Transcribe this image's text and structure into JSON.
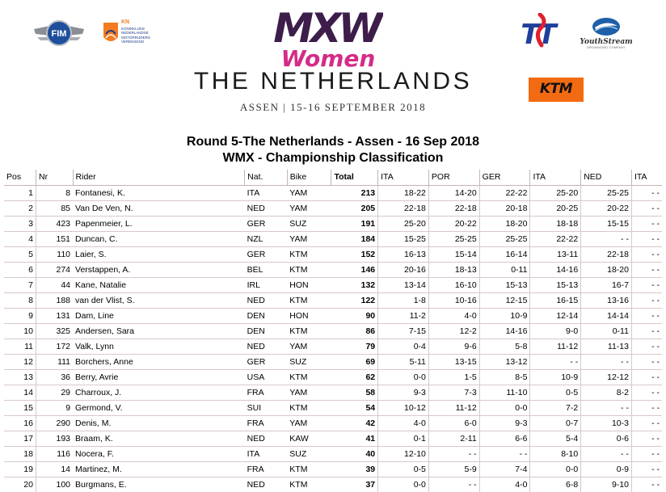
{
  "header": {
    "event_logo_top": "MXW",
    "event_logo_bottom": "Women",
    "country": "THE NETHERLANDS",
    "dates": "ASSEN | 15-16 SEPTEMBER 2018",
    "sponsor_knmv_abbr": "KN",
    "sponsor_knmv_text": "Koninklijke Nederlandse Motorrijders Vereniging",
    "sponsor_tt": "TT",
    "sponsor_youthstream": "YouthStream",
    "sponsor_youthstream_sub": "ORGANIZING COMPANY",
    "sponsor_ktm": "KTM",
    "sponsor_fim": "FIM"
  },
  "title": {
    "line1": "Round 5-The Netherlands - Assen - 16 Sep 2018",
    "line2": "WMX - Championship Classification"
  },
  "table": {
    "columns": [
      "Pos",
      "Nr",
      "Rider",
      "Nat.",
      "Bike",
      "Total",
      "ITA",
      "POR",
      "GER",
      "ITA",
      "NED",
      "ITA"
    ],
    "rows": [
      [
        "1",
        "8",
        "Fontanesi, K.",
        "ITA",
        "YAM",
        "213",
        "18-22",
        "14-20",
        "22-22",
        "25-20",
        "25-25",
        "- -"
      ],
      [
        "2",
        "85",
        "Van De Ven, N.",
        "NED",
        "YAM",
        "205",
        "22-18",
        "22-18",
        "20-18",
        "20-25",
        "20-22",
        "- -"
      ],
      [
        "3",
        "423",
        "Papenmeier, L.",
        "GER",
        "SUZ",
        "191",
        "25-20",
        "20-22",
        "18-20",
        "18-18",
        "15-15",
        "- -"
      ],
      [
        "4",
        "151",
        "Duncan, C.",
        "NZL",
        "YAM",
        "184",
        "15-25",
        "25-25",
        "25-25",
        "22-22",
        "- -",
        "- -"
      ],
      [
        "5",
        "110",
        "Laier, S.",
        "GER",
        "KTM",
        "152",
        "16-13",
        "15-14",
        "16-14",
        "13-11",
        "22-18",
        "- -"
      ],
      [
        "6",
        "274",
        "Verstappen, A.",
        "BEL",
        "KTM",
        "146",
        "20-16",
        "18-13",
        "0-11",
        "14-16",
        "18-20",
        "- -"
      ],
      [
        "7",
        "44",
        "Kane, Natalie",
        "IRL",
        "HON",
        "132",
        "13-14",
        "16-10",
        "15-13",
        "15-13",
        "16-7",
        "- -"
      ],
      [
        "8",
        "188",
        "van der Vlist, S.",
        "NED",
        "KTM",
        "122",
        "1-8",
        "10-16",
        "12-15",
        "16-15",
        "13-16",
        "- -"
      ],
      [
        "9",
        "131",
        "Dam, Line",
        "DEN",
        "HON",
        "90",
        "11-2",
        "4-0",
        "10-9",
        "12-14",
        "14-14",
        "- -"
      ],
      [
        "10",
        "325",
        "Andersen, Sara",
        "DEN",
        "KTM",
        "86",
        "7-15",
        "12-2",
        "14-16",
        "9-0",
        "0-11",
        "- -"
      ],
      [
        "11",
        "172",
        "Valk, Lynn",
        "NED",
        "YAM",
        "79",
        "0-4",
        "9-6",
        "5-8",
        "11-12",
        "11-13",
        "- -"
      ],
      [
        "12",
        "111",
        "Borchers, Anne",
        "GER",
        "SUZ",
        "69",
        "5-11",
        "13-15",
        "13-12",
        "- -",
        "- -",
        "- -"
      ],
      [
        "13",
        "36",
        "Berry, Avrie",
        "USA",
        "KTM",
        "62",
        "0-0",
        "1-5",
        "8-5",
        "10-9",
        "12-12",
        "- -"
      ],
      [
        "14",
        "29",
        "Charroux, J.",
        "FRA",
        "YAM",
        "58",
        "9-3",
        "7-3",
        "11-10",
        "0-5",
        "8-2",
        "- -"
      ],
      [
        "15",
        "9",
        "Germond, V.",
        "SUI",
        "KTM",
        "54",
        "10-12",
        "11-12",
        "0-0",
        "7-2",
        "- -",
        "- -"
      ],
      [
        "16",
        "290",
        "Denis, M.",
        "FRA",
        "YAM",
        "42",
        "4-0",
        "6-0",
        "9-3",
        "0-7",
        "10-3",
        "- -"
      ],
      [
        "17",
        "193",
        "Braam, K.",
        "NED",
        "KAW",
        "41",
        "0-1",
        "2-11",
        "6-6",
        "5-4",
        "0-6",
        "- -"
      ],
      [
        "18",
        "116",
        "Nocera, F.",
        "ITA",
        "SUZ",
        "40",
        "12-10",
        "- -",
        "- -",
        "8-10",
        "- -",
        "- -"
      ],
      [
        "19",
        "14",
        "Martinez, M.",
        "FRA",
        "KTM",
        "39",
        "0-5",
        "5-9",
        "7-4",
        "0-0",
        "0-9",
        "- -"
      ],
      [
        "20",
        "100",
        "Burgmans, E.",
        "NED",
        "KTM",
        "37",
        "0-0",
        "- -",
        "4-0",
        "6-8",
        "9-10",
        "- -"
      ]
    ]
  },
  "colors": {
    "mxw_purple": "#3d1d4a",
    "mxw_magenta": "#d42c87",
    "ktm_orange": "#f26b12",
    "table_line": "#d8c8c8"
  }
}
